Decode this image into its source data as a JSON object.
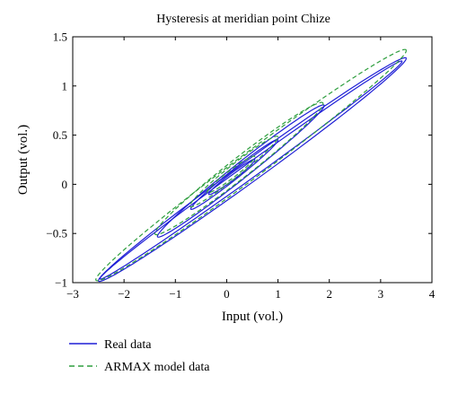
{
  "chart_data": {
    "type": "line",
    "title": "Hysteresis at meridian point Chize",
    "xlabel": "Input (vol.)",
    "ylabel": "Output (vol.)",
    "xlim": [
      -3,
      4
    ],
    "ylim": [
      -1,
      1.5
    ],
    "xticks": [
      -3,
      -2,
      -1,
      0,
      1,
      2,
      3,
      4
    ],
    "yticks": [
      -1,
      -0.5,
      0,
      0.5,
      1,
      1.5
    ],
    "xtick_labels": [
      "−3",
      "−2",
      "−1",
      "0",
      "1",
      "2",
      "3",
      "4"
    ],
    "ytick_labels": [
      "−1",
      "−0.5",
      "0",
      "0.5",
      "1",
      "1.5"
    ],
    "grid": false,
    "legend_position": "bottom-left, below axes",
    "series": [
      {
        "name": "Real data",
        "color": "#1f1fd6",
        "style": "solid",
        "loops": [
          {
            "x_min": -2.5,
            "y_at_min": -0.98,
            "x_max": 3.5,
            "y_at_max": 1.28,
            "half_width": 0.13
          },
          {
            "x_min": -2.47,
            "y_at_min": -0.96,
            "x_max": 3.42,
            "y_at_max": 1.25,
            "half_width": 0.09
          },
          {
            "x_min": -1.35,
            "y_at_min": -0.53,
            "x_max": 1.9,
            "y_at_max": 0.8,
            "half_width": 0.1
          },
          {
            "x_min": -0.7,
            "y_at_min": -0.25,
            "x_max": 1.0,
            "y_at_max": 0.45,
            "half_width": 0.06
          },
          {
            "x_min": -0.35,
            "y_at_min": -0.1,
            "x_max": 0.55,
            "y_at_max": 0.25,
            "half_width": 0.04
          }
        ]
      },
      {
        "name": "ARMAX model data",
        "color": "#2e9e3e",
        "style": "dashed",
        "loops": [
          {
            "x_min": -2.55,
            "y_at_min": -0.97,
            "x_max": 3.5,
            "y_at_max": 1.36,
            "half_width": 0.16
          },
          {
            "x_min": -1.4,
            "y_at_min": -0.5,
            "x_max": 1.88,
            "y_at_max": 0.82,
            "half_width": 0.13
          },
          {
            "x_min": -0.72,
            "y_at_min": -0.22,
            "x_max": 1.0,
            "y_at_max": 0.48,
            "half_width": 0.08
          },
          {
            "x_min": -0.38,
            "y_at_min": -0.08,
            "x_max": 0.55,
            "y_at_max": 0.28,
            "half_width": 0.05
          }
        ]
      }
    ]
  }
}
